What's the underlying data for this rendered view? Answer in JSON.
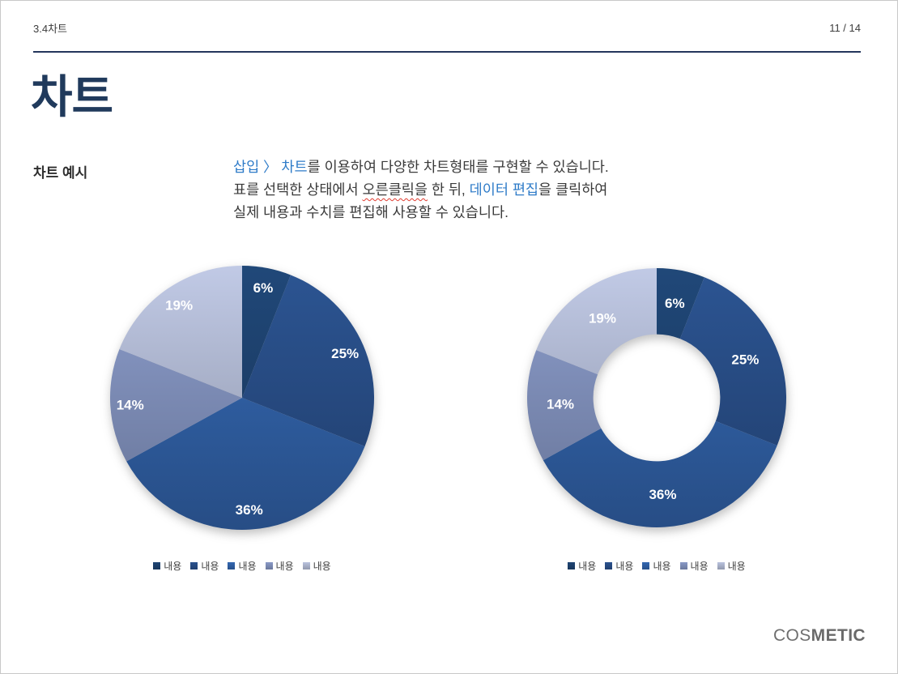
{
  "page": {
    "header": {
      "section": "3.4차트",
      "page_number": "11 / 14"
    },
    "title": "차트",
    "example_label": "차트 예시",
    "description_lines": [
      {
        "segments": [
          {
            "text": "삽입 〉 차트",
            "style": "link"
          },
          {
            "text": "를 이용하여 다양한 차트형태를 구현할 수 있습니다.",
            "style": "normal"
          }
        ]
      },
      {
        "segments": [
          {
            "text": "표를 선택한 상태에서 ",
            "style": "normal"
          },
          {
            "text": "오른클릭을",
            "style": "spellcheck"
          },
          {
            "text": " 한 뒤, ",
            "style": "normal"
          },
          {
            "text": "데이터 편집",
            "style": "link"
          },
          {
            "text": "을 클릭하여",
            "style": "normal"
          }
        ]
      },
      {
        "segments": [
          {
            "text": "실제 내용과 수치를 편집해 사용할 수 있습니다.",
            "style": "normal"
          }
        ]
      }
    ],
    "logo": {
      "prefix": "COS",
      "suffix": "METIC"
    }
  },
  "colors": {
    "accent_navy": "#203a5c",
    "link_blue": "#2e7bc8",
    "spellcheck_red": "#e03c31",
    "slice_colors": [
      "#1c3e68",
      "#26497f",
      "#2e5c9e",
      "#7a89b2",
      "#a6aec6"
    ],
    "label_white": "#ffffff"
  },
  "chart_data": [
    {
      "type": "pie",
      "title": "",
      "categories": [
        "내용",
        "내용",
        "내용",
        "내용",
        "내용"
      ],
      "values": [
        6,
        25,
        36,
        14,
        19
      ],
      "labels": [
        "6%",
        "25%",
        "36%",
        "14%",
        "19%"
      ],
      "unit": "%",
      "colors": [
        "#1c3e68",
        "#26497f",
        "#2e5c9e",
        "#7a89b2",
        "#a6aec6"
      ],
      "start_angle_deg": 0,
      "direction": "clockwise",
      "hole_ratio": 0,
      "legend_position": "bottom",
      "legend_labels": [
        "내용",
        "내용",
        "내용",
        "내용",
        "내용"
      ]
    },
    {
      "type": "pie",
      "subtype": "donut",
      "title": "",
      "categories": [
        "내용",
        "내용",
        "내용",
        "내용",
        "내용"
      ],
      "values": [
        6,
        25,
        36,
        14,
        19
      ],
      "labels": [
        "6%",
        "25%",
        "36%",
        "14%",
        "19%"
      ],
      "unit": "%",
      "colors": [
        "#1c3e68",
        "#26497f",
        "#2e5c9e",
        "#7a89b2",
        "#a6aec6"
      ],
      "start_angle_deg": 0,
      "direction": "clockwise",
      "hole_ratio": 0.49,
      "legend_position": "bottom",
      "legend_labels": [
        "내용",
        "내용",
        "내용",
        "내용",
        "내용"
      ]
    }
  ]
}
